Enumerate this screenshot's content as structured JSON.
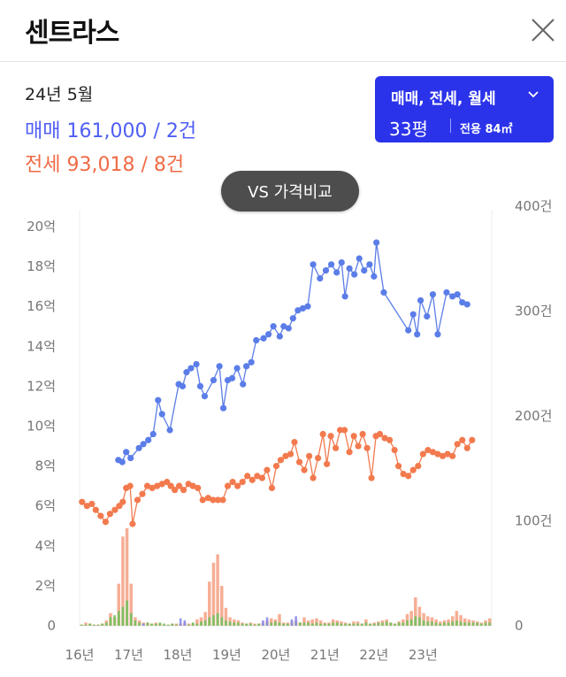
{
  "header": {
    "title": "센트라스"
  },
  "info": {
    "date": "24년 5월",
    "sale": "매매 161,000 / 2건",
    "rent": "전세 93,018 / 8건"
  },
  "filter": {
    "type_label": "매매, 전세, 월세",
    "size_label": "33평",
    "area_label": "전용 84㎡"
  },
  "vs_button": {
    "label": "VS 가격비교"
  },
  "colors": {
    "sale": "#5b7de8",
    "rent": "#f27a4e",
    "filter_bg": "#2b33ea",
    "volume_green": "#6fc35c",
    "volume_rent": "#f5a58a",
    "volume_sale": "#8a8cf0"
  },
  "chart_data": {
    "type": "line",
    "x_labels": [
      "16년",
      "17년",
      "18년",
      "19년",
      "20년",
      "21년",
      "22년",
      "23년"
    ],
    "x_range": [
      2016.0,
      2024.4
    ],
    "y_left_ticks": [
      "0",
      "2억",
      "4억",
      "6억",
      "8억",
      "10억",
      "12억",
      "14억",
      "16억",
      "18억",
      "20억"
    ],
    "y_left_range": [
      0,
      20
    ],
    "y_right_ticks": [
      "0",
      "100건",
      "200건",
      "300건",
      "400건"
    ],
    "y_right_range": [
      0,
      400
    ],
    "series": [
      {
        "name": "매매",
        "color": "#5b7de8",
        "points": [
          [
            2016.79,
            8.3
          ],
          [
            2016.87,
            8.2
          ],
          [
            2016.95,
            8.7
          ],
          [
            2017.04,
            8.4
          ],
          [
            2017.21,
            8.9
          ],
          [
            2017.3,
            9.1
          ],
          [
            2017.4,
            9.3
          ],
          [
            2017.5,
            9.6
          ],
          [
            2017.6,
            11.3
          ],
          [
            2017.68,
            10.6
          ],
          [
            2017.84,
            9.8
          ],
          [
            2018.02,
            12.1
          ],
          [
            2018.1,
            12.0
          ],
          [
            2018.18,
            12.7
          ],
          [
            2018.27,
            12.9
          ],
          [
            2018.38,
            13.1
          ],
          [
            2018.46,
            12.0
          ],
          [
            2018.55,
            11.5
          ],
          [
            2018.73,
            12.3
          ],
          [
            2018.85,
            13.0
          ],
          [
            2018.93,
            10.9
          ],
          [
            2019.02,
            12.3
          ],
          [
            2019.11,
            12.4
          ],
          [
            2019.21,
            12.9
          ],
          [
            2019.33,
            12.1
          ],
          [
            2019.4,
            13.0
          ],
          [
            2019.5,
            13.2
          ],
          [
            2019.6,
            14.3
          ],
          [
            2019.75,
            14.4
          ],
          [
            2019.85,
            14.6
          ],
          [
            2019.95,
            15.0
          ],
          [
            2020.08,
            14.5
          ],
          [
            2020.16,
            15.0
          ],
          [
            2020.26,
            14.9
          ],
          [
            2020.35,
            15.4
          ],
          [
            2020.45,
            15.8
          ],
          [
            2020.55,
            15.9
          ],
          [
            2020.65,
            16.0
          ],
          [
            2020.76,
            18.1
          ],
          [
            2020.9,
            17.4
          ],
          [
            2021.02,
            17.8
          ],
          [
            2021.13,
            18.1
          ],
          [
            2021.24,
            17.7
          ],
          [
            2021.34,
            18.2
          ],
          [
            2021.41,
            16.5
          ],
          [
            2021.5,
            17.9
          ],
          [
            2021.6,
            17.6
          ],
          [
            2021.7,
            18.4
          ],
          [
            2021.8,
            17.8
          ],
          [
            2021.91,
            18.1
          ],
          [
            2022.0,
            17.5
          ],
          [
            2022.05,
            19.2
          ],
          [
            2022.2,
            16.7
          ],
          [
            2022.7,
            14.8
          ],
          [
            2022.8,
            15.6
          ],
          [
            2022.88,
            14.6
          ],
          [
            2022.95,
            16.3
          ],
          [
            2023.08,
            15.5
          ],
          [
            2023.2,
            16.6
          ],
          [
            2023.3,
            14.6
          ],
          [
            2023.48,
            16.7
          ],
          [
            2023.6,
            16.5
          ],
          [
            2023.7,
            16.6
          ],
          [
            2023.8,
            16.2
          ],
          [
            2023.9,
            16.1
          ]
        ]
      },
      {
        "name": "전세",
        "color": "#f27a4e",
        "points": [
          [
            2016.05,
            6.2
          ],
          [
            2016.15,
            6.0
          ],
          [
            2016.25,
            6.1
          ],
          [
            2016.33,
            5.8
          ],
          [
            2016.43,
            5.5
          ],
          [
            2016.53,
            5.2
          ],
          [
            2016.62,
            5.6
          ],
          [
            2016.72,
            5.8
          ],
          [
            2016.81,
            6.0
          ],
          [
            2016.88,
            6.2
          ],
          [
            2016.95,
            6.9
          ],
          [
            2017.03,
            7.0
          ],
          [
            2017.08,
            5.1
          ],
          [
            2017.18,
            6.3
          ],
          [
            2017.28,
            6.6
          ],
          [
            2017.38,
            7.0
          ],
          [
            2017.48,
            6.9
          ],
          [
            2017.58,
            7.0
          ],
          [
            2017.68,
            7.1
          ],
          [
            2017.78,
            7.2
          ],
          [
            2017.86,
            7.0
          ],
          [
            2017.94,
            6.8
          ],
          [
            2018.03,
            7.0
          ],
          [
            2018.12,
            6.8
          ],
          [
            2018.22,
            7.1
          ],
          [
            2018.31,
            7.0
          ],
          [
            2018.41,
            6.9
          ],
          [
            2018.51,
            6.3
          ],
          [
            2018.62,
            6.4
          ],
          [
            2018.72,
            6.3
          ],
          [
            2018.82,
            6.3
          ],
          [
            2018.92,
            6.3
          ],
          [
            2019.02,
            7.0
          ],
          [
            2019.12,
            7.2
          ],
          [
            2019.22,
            7.0
          ],
          [
            2019.32,
            7.2
          ],
          [
            2019.42,
            7.5
          ],
          [
            2019.52,
            7.3
          ],
          [
            2019.62,
            7.5
          ],
          [
            2019.72,
            7.4
          ],
          [
            2019.82,
            7.8
          ],
          [
            2019.92,
            6.9
          ],
          [
            2020.01,
            8.0
          ],
          [
            2020.1,
            8.3
          ],
          [
            2020.2,
            8.5
          ],
          [
            2020.3,
            8.6
          ],
          [
            2020.38,
            9.2
          ],
          [
            2020.48,
            8.2
          ],
          [
            2020.58,
            7.8
          ],
          [
            2020.68,
            8.5
          ],
          [
            2020.76,
            7.4
          ],
          [
            2020.86,
            8.4
          ],
          [
            2020.96,
            9.6
          ],
          [
            2021.04,
            8.1
          ],
          [
            2021.12,
            9.5
          ],
          [
            2021.22,
            8.9
          ],
          [
            2021.31,
            9.8
          ],
          [
            2021.4,
            9.8
          ],
          [
            2021.5,
            8.7
          ],
          [
            2021.59,
            9.5
          ],
          [
            2021.68,
            9.0
          ],
          [
            2021.77,
            9.6
          ],
          [
            2021.86,
            8.9
          ],
          [
            2021.95,
            7.4
          ],
          [
            2022.04,
            9.5
          ],
          [
            2022.12,
            9.6
          ],
          [
            2022.22,
            9.4
          ],
          [
            2022.32,
            9.3
          ],
          [
            2022.42,
            8.8
          ],
          [
            2022.5,
            8.0
          ],
          [
            2022.6,
            7.6
          ],
          [
            2022.7,
            7.5
          ],
          [
            2022.8,
            7.8
          ],
          [
            2022.9,
            8.0
          ],
          [
            2023.0,
            8.6
          ],
          [
            2023.1,
            8.8
          ],
          [
            2023.2,
            8.7
          ],
          [
            2023.3,
            8.6
          ],
          [
            2023.4,
            8.5
          ],
          [
            2023.5,
            8.6
          ],
          [
            2023.6,
            8.5
          ],
          [
            2023.7,
            9.1
          ],
          [
            2023.8,
            9.3
          ],
          [
            2023.9,
            8.9
          ],
          [
            2024.0,
            9.3
          ]
        ]
      }
    ],
    "volume_series": [
      {
        "name": "전세 거래량",
        "color": "#f5a58a",
        "values": [
          1,
          3,
          2,
          1,
          1,
          2,
          5,
          12,
          8,
          40,
          85,
          93,
          40,
          8,
          5,
          3,
          3,
          2,
          3,
          2,
          1,
          1,
          2,
          2,
          2,
          3,
          2,
          2,
          6,
          8,
          13,
          42,
          60,
          68,
          38,
          17,
          8,
          6,
          5,
          3,
          2,
          3,
          2,
          2,
          3,
          5,
          7,
          6,
          11,
          3,
          3,
          4,
          5,
          3,
          8,
          5,
          6,
          7,
          5,
          3,
          3,
          6,
          5,
          4,
          3,
          2,
          4,
          4,
          2,
          6,
          2,
          3,
          4,
          5,
          6,
          3,
          2,
          4,
          6,
          11,
          14,
          27,
          18,
          12,
          9,
          8,
          6,
          4,
          5,
          6,
          9,
          14,
          10,
          7,
          6,
          5,
          4,
          3,
          5,
          7
        ]
      },
      {
        "name": "매매 거래량",
        "color": "#6fc35c",
        "values": [
          1,
          1,
          2,
          1,
          1,
          2,
          3,
          8,
          10,
          14,
          18,
          24,
          12,
          5,
          3,
          2,
          3,
          2,
          2,
          3,
          2,
          1,
          2,
          1,
          2,
          2,
          1,
          3,
          2,
          4,
          5,
          8,
          10,
          12,
          8,
          5,
          4,
          3,
          3,
          2,
          2,
          2,
          1,
          2,
          2,
          3,
          3,
          4,
          3,
          2,
          2,
          3,
          4,
          3,
          3,
          3,
          2,
          3,
          2,
          2,
          2,
          3,
          3,
          2,
          2,
          2,
          2,
          2,
          2,
          3,
          2,
          2,
          3,
          3,
          4,
          3,
          2,
          3,
          3,
          5,
          6,
          9,
          8,
          5,
          4,
          4,
          3,
          2,
          3,
          3,
          4,
          5,
          4,
          3,
          3,
          3,
          3,
          2,
          3,
          3
        ]
      },
      {
        "name": "월세 거래량",
        "color": "#8a8cf0",
        "values": [
          0,
          0,
          0,
          0,
          0,
          0,
          0,
          0,
          0,
          0,
          0,
          0,
          0,
          0,
          0,
          2,
          0,
          0,
          0,
          0,
          0,
          0,
          0,
          0,
          7,
          5,
          0,
          0,
          0,
          0,
          0,
          0,
          0,
          0,
          0,
          0,
          0,
          0,
          0,
          0,
          0,
          0,
          0,
          0,
          5,
          8,
          0,
          0,
          0,
          0,
          0,
          6,
          9,
          0,
          0,
          0,
          0,
          0,
          0,
          0,
          0,
          0,
          0,
          0,
          0,
          0,
          0,
          0,
          0,
          0,
          0,
          0,
          0,
          0,
          0,
          0,
          0,
          0,
          0,
          0,
          0,
          0,
          0,
          0,
          0,
          0,
          0,
          0,
          0,
          0,
          0,
          0,
          0,
          0,
          0,
          0,
          0,
          0,
          0,
          0
        ]
      }
    ]
  }
}
